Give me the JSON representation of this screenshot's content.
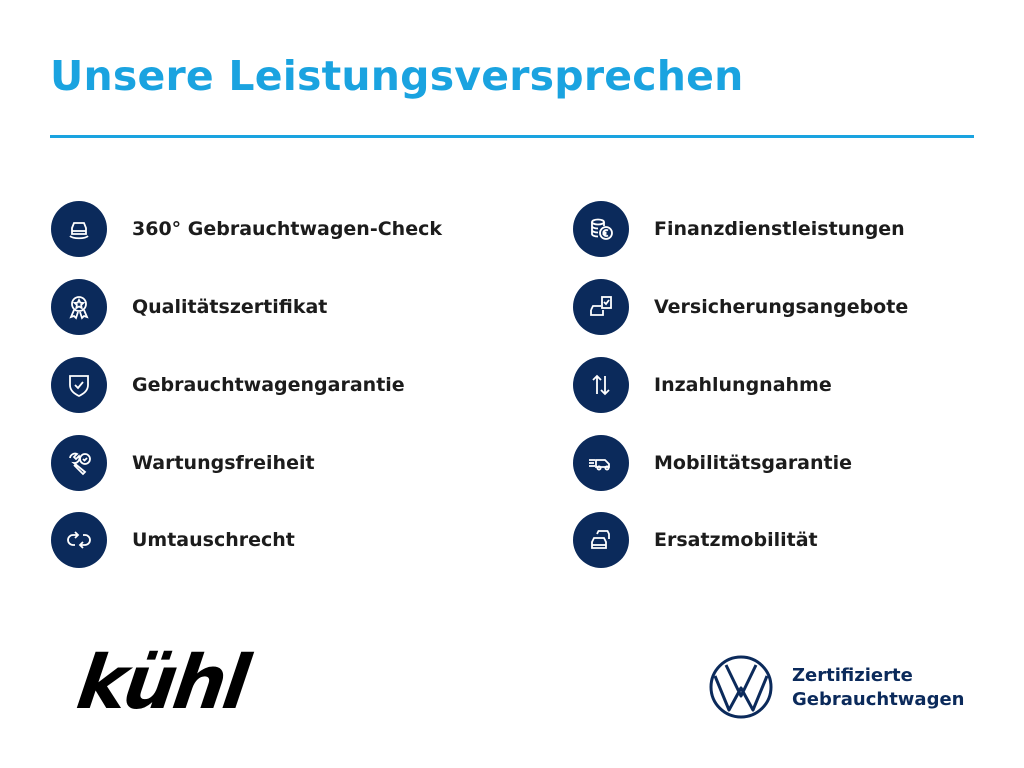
{
  "header": {
    "title": "Unsere Leistungsversprechen",
    "accent_color": "#1aa3e0"
  },
  "icon_color": "#0b2a5b",
  "left_items": [
    {
      "label": "360° Gebrauchtwagen-Check",
      "icon": "car-360-icon"
    },
    {
      "label": "Qualitätszertifikat",
      "icon": "award-ribbon-icon"
    },
    {
      "label": "Gebrauchtwagengarantie",
      "icon": "shield-check-icon"
    },
    {
      "label": "Wartungsfreiheit",
      "icon": "wrench-check-icon"
    },
    {
      "label": "Umtauschrecht",
      "icon": "exchange-arrows-icon"
    }
  ],
  "right_items": [
    {
      "label": "Finanzdienstleistungen",
      "icon": "coins-euro-icon"
    },
    {
      "label": "Versicherungsangebote",
      "icon": "car-document-icon"
    },
    {
      "label": "Inzahlungnahme",
      "icon": "up-down-arrows-icon"
    },
    {
      "label": "Mobilitätsgarantie",
      "icon": "tow-truck-icon"
    },
    {
      "label": "Ersatzmobilität",
      "icon": "cars-stack-icon"
    }
  ],
  "footer": {
    "dealer_logo": "kühl",
    "brand_line1": "Zertifizierte",
    "brand_line2": "Gebrauchtwagen"
  }
}
